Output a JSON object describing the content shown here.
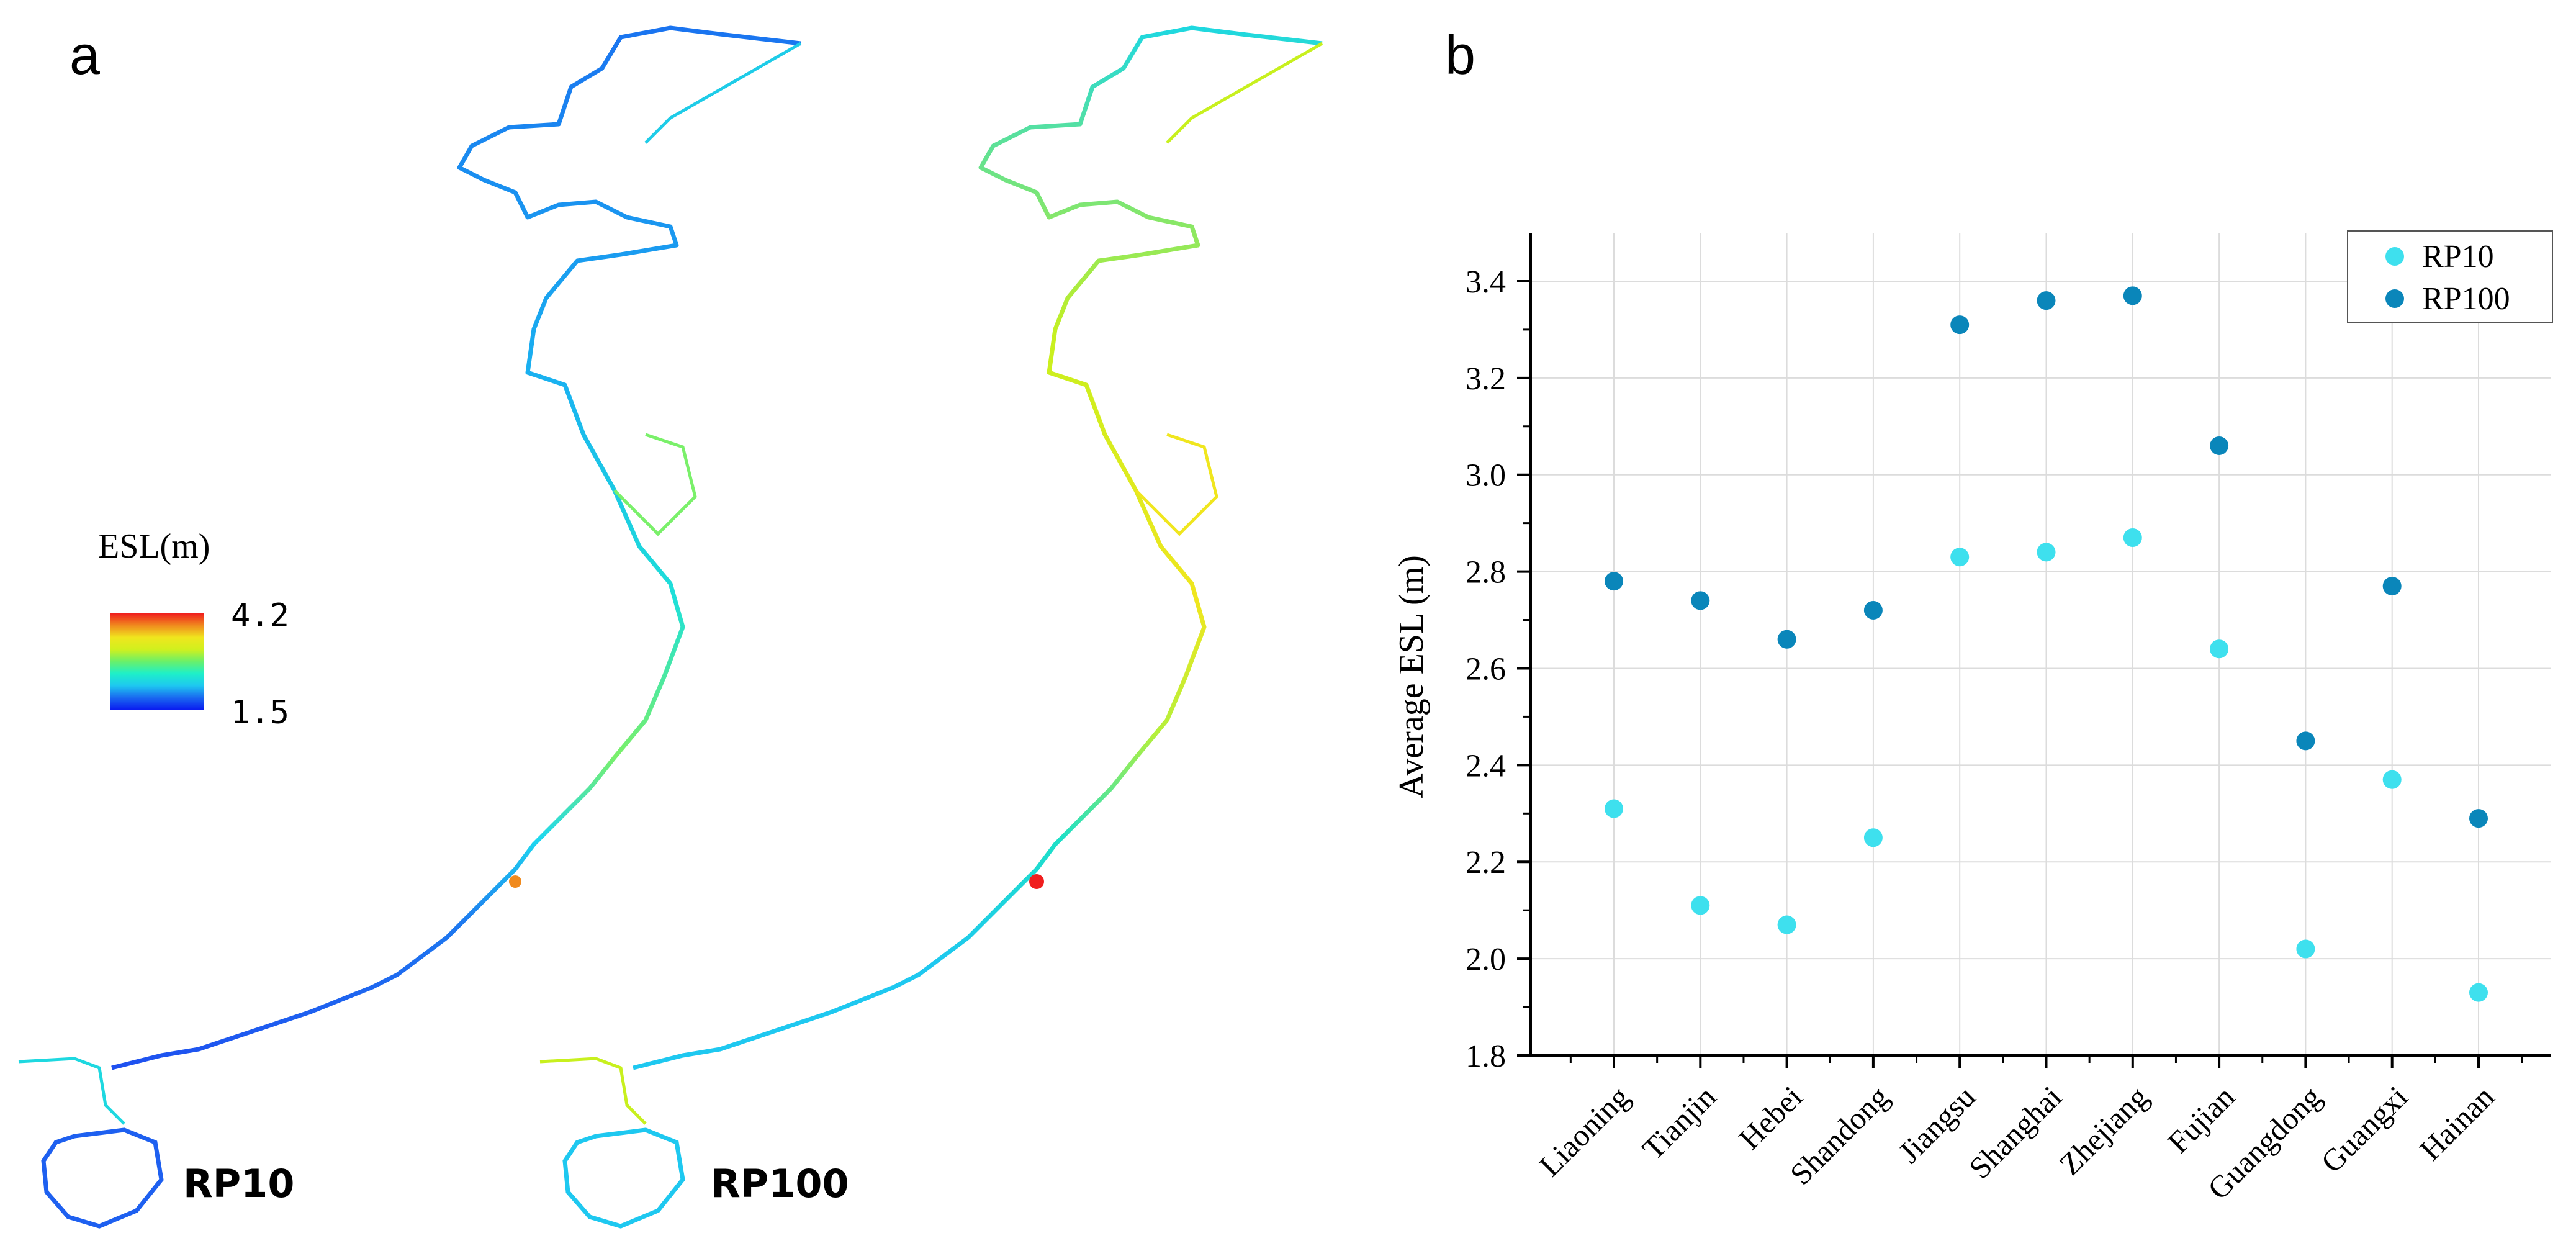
{
  "panel_a": {
    "letter": "a",
    "legend": {
      "title": "ESL(m)",
      "max": "4.2",
      "min": "1.5"
    },
    "maps": [
      {
        "label": "RP10"
      },
      {
        "label": "RP100"
      }
    ],
    "colormap": [
      "#0a1cf0",
      "#1a6af0",
      "#1ec8f0",
      "#1ef0c8",
      "#6af06a",
      "#d0f01e",
      "#f0e61e",
      "#f08a1e",
      "#f01e1e"
    ]
  },
  "panel_b": {
    "letter": "b"
  },
  "chart_data": {
    "type": "scatter",
    "title": "",
    "xlabel": "",
    "ylabel": "Average ESL (m)",
    "ylim": [
      1.8,
      3.5
    ],
    "yticks": [
      "1.8",
      "2.0",
      "2.2",
      "2.4",
      "2.6",
      "2.8",
      "3.0",
      "3.2",
      "3.4"
    ],
    "categories": [
      "Liaoning",
      "Tianjin",
      "Hebei",
      "Shandong",
      "Jiangsu",
      "Shanghai",
      "Zhejiang",
      "Fujian",
      "Guangdong",
      "Guangxi",
      "Hainan"
    ],
    "series": [
      {
        "name": "RP10",
        "color": "#3ee0ee",
        "values": [
          2.31,
          2.11,
          2.07,
          2.25,
          2.83,
          2.84,
          2.87,
          2.64,
          2.02,
          2.37,
          1.93
        ]
      },
      {
        "name": "RP100",
        "color": "#0a86ba",
        "values": [
          2.78,
          2.74,
          2.66,
          2.72,
          3.31,
          3.36,
          3.37,
          3.06,
          2.45,
          2.77,
          2.29
        ]
      }
    ],
    "grid": true,
    "legend_position": "top-right"
  }
}
